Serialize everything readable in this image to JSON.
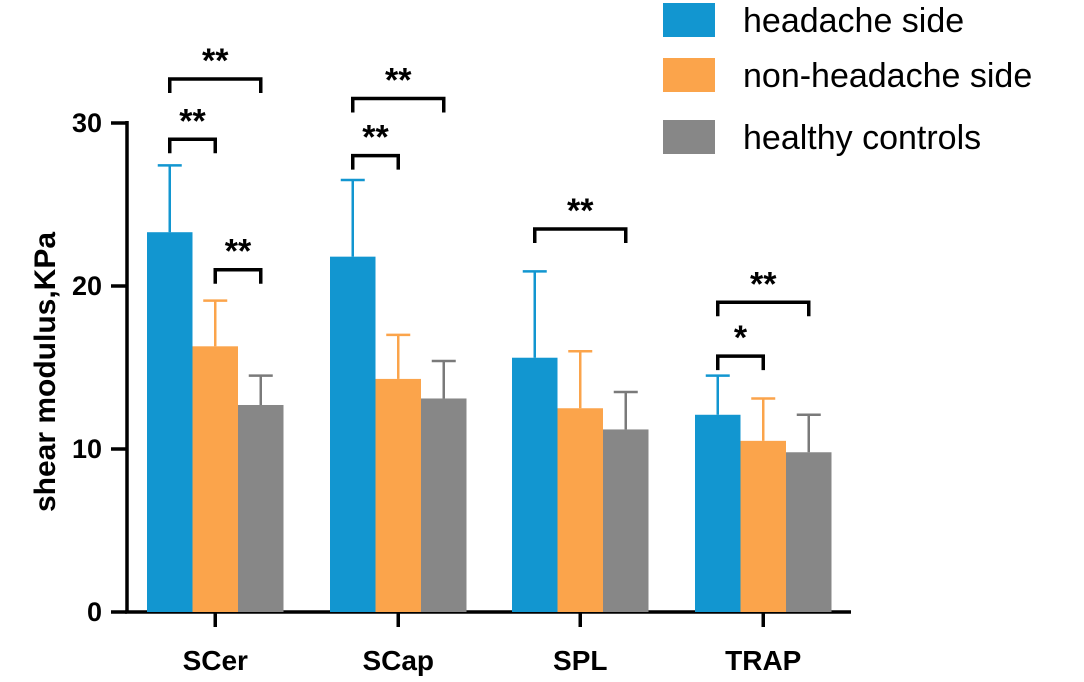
{
  "chart_data": {
    "type": "bar",
    "title": "",
    "xlabel": "",
    "ylabel": "shear modulus,KPa",
    "ylim": [
      0,
      30
    ],
    "yticks": [
      0,
      10,
      20,
      30
    ],
    "legend_position": "top-right",
    "categories": [
      "SCer",
      "SCap",
      "SPL",
      "TRAP"
    ],
    "series": [
      {
        "name": "headache side",
        "color": "#1296D0",
        "errorColor": "#1296D0",
        "values": [
          23.3,
          21.8,
          15.6,
          12.1
        ],
        "errors": [
          4.1,
          4.7,
          5.3,
          2.4
        ]
      },
      {
        "name": "non-headache side",
        "color": "#FBA44B",
        "errorColor": "#FBA44B",
        "values": [
          16.3,
          14.3,
          12.5,
          10.5
        ],
        "errors": [
          2.8,
          2.7,
          3.5,
          2.6
        ]
      },
      {
        "name": "healthy controls",
        "color": "#878787",
        "errorColor": "#7A7A7A",
        "values": [
          12.7,
          13.1,
          11.2,
          9.8
        ],
        "errors": [
          1.8,
          2.3,
          2.3,
          2.3
        ]
      }
    ],
    "significance": [
      {
        "category": 0,
        "from": 0,
        "to": 1,
        "y": 29.0,
        "label": "**"
      },
      {
        "category": 0,
        "from": 0,
        "to": 2,
        "y": 32.7,
        "label": "**"
      },
      {
        "category": 0,
        "from": 1,
        "to": 2,
        "y": 21.0,
        "label": "**"
      },
      {
        "category": 1,
        "from": 0,
        "to": 1,
        "y": 28.0,
        "label": "**"
      },
      {
        "category": 1,
        "from": 0,
        "to": 2,
        "y": 31.5,
        "label": "**"
      },
      {
        "category": 2,
        "from": 0,
        "to": 2,
        "y": 23.5,
        "label": "**"
      },
      {
        "category": 3,
        "from": 0,
        "to": 1,
        "y": 15.7,
        "label": "*"
      },
      {
        "category": 3,
        "from": 0,
        "to": 2,
        "y": 19.0,
        "label": "**"
      }
    ]
  }
}
